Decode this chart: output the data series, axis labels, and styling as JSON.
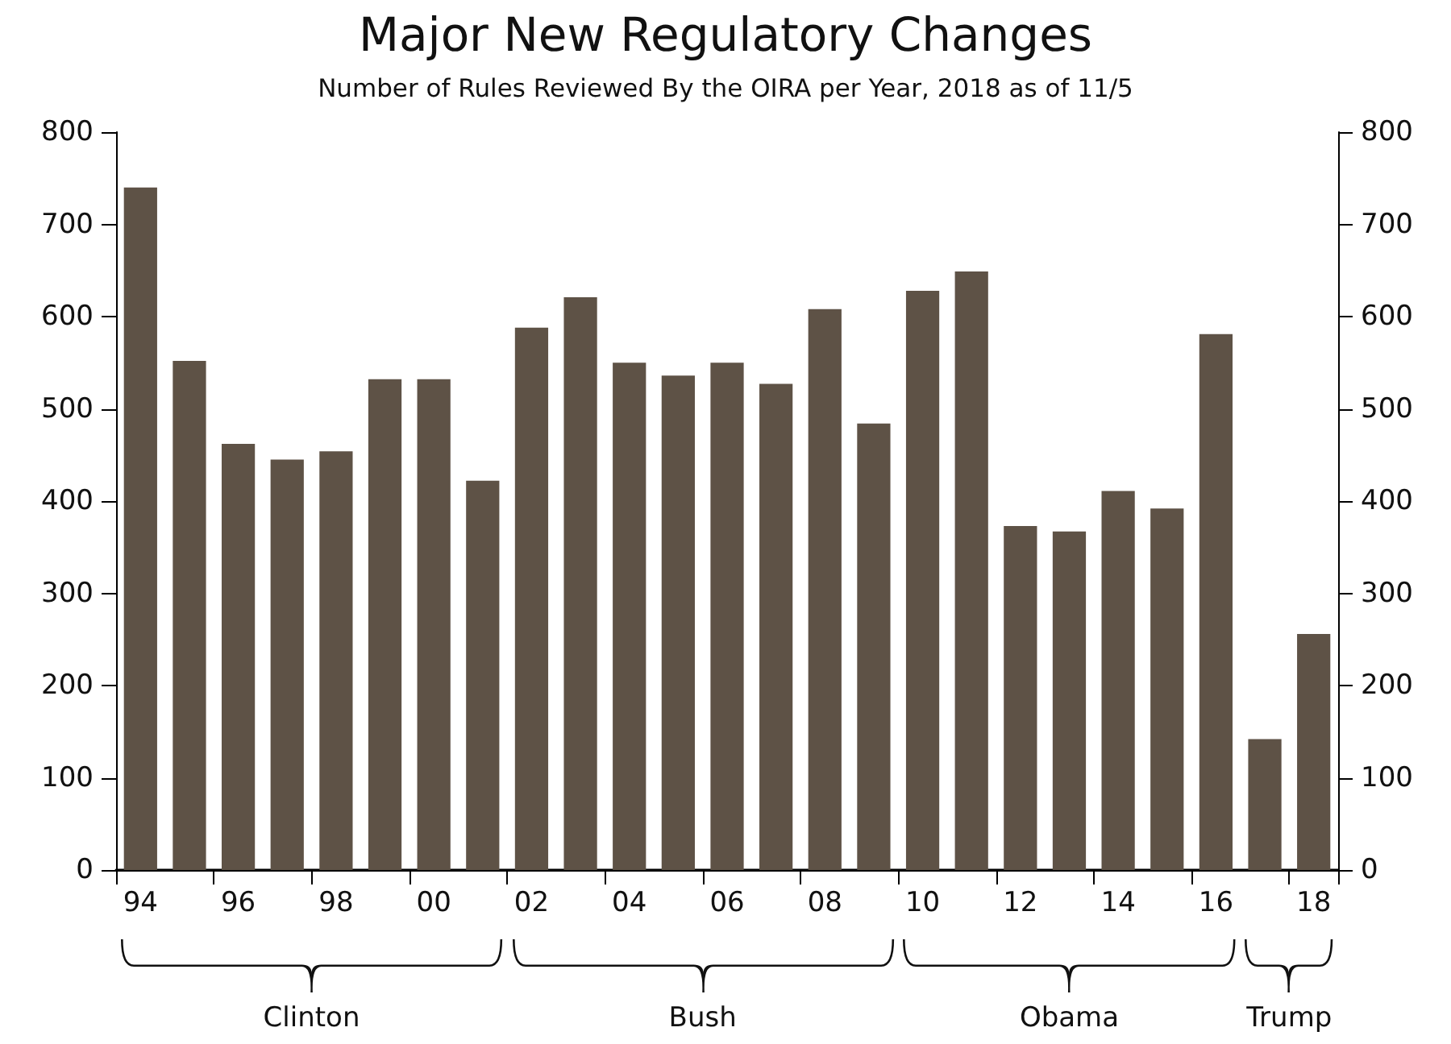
{
  "chart_data": {
    "type": "bar",
    "title": "Major New Regulatory Changes",
    "subtitle": "Number of Rules Reviewed By the OIRA per Year, 2018 as of 11/5",
    "categories": [
      "94",
      null,
      "96",
      null,
      "98",
      null,
      "00",
      null,
      "02",
      null,
      "04",
      null,
      "06",
      null,
      "08",
      null,
      "10",
      null,
      "12",
      null,
      "14",
      null,
      "16",
      null,
      "18"
    ],
    "values": [
      740,
      552,
      462,
      445,
      454,
      532,
      532,
      422,
      588,
      621,
      550,
      536,
      550,
      527,
      608,
      484,
      628,
      649,
      373,
      367,
      411,
      392,
      581,
      142,
      256
    ],
    "color": "#5e5246",
    "ylim": [
      0,
      800
    ],
    "yticks": [
      0,
      100,
      200,
      300,
      400,
      500,
      600,
      700,
      800
    ],
    "y2lim": [
      0,
      800
    ],
    "y2ticks": [
      0,
      100,
      200,
      300,
      400,
      500,
      600,
      700,
      800
    ],
    "grid": false,
    "annotations": [
      "Clinton",
      "Bush",
      "Obama",
      "Trump"
    ]
  }
}
